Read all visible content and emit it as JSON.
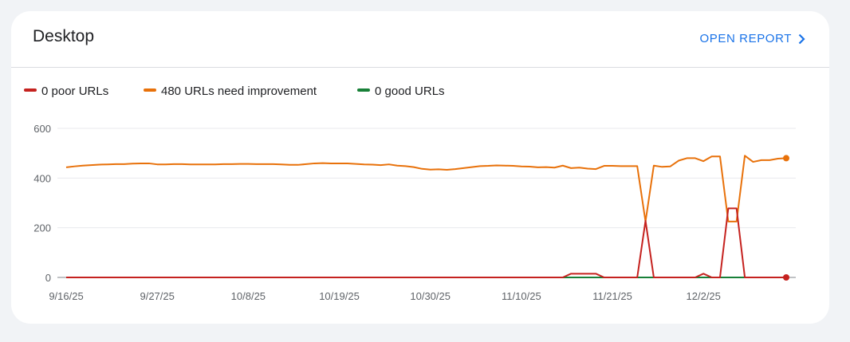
{
  "header": {
    "title": "Desktop",
    "link": "OPEN REPORT"
  },
  "chart_data": {
    "type": "line",
    "x": [
      "9/16/25",
      null,
      null,
      null,
      null,
      null,
      null,
      null,
      null,
      null,
      null,
      "9/27/25",
      null,
      null,
      null,
      null,
      null,
      null,
      null,
      null,
      null,
      null,
      "10/8/25",
      null,
      null,
      null,
      null,
      null,
      null,
      null,
      null,
      null,
      null,
      "10/19/25",
      null,
      null,
      null,
      null,
      null,
      null,
      null,
      null,
      null,
      null,
      "10/30/25",
      null,
      null,
      null,
      null,
      null,
      null,
      null,
      null,
      null,
      null,
      "11/10/25",
      null,
      null,
      null,
      null,
      null,
      null,
      null,
      null,
      null,
      null,
      "11/21/25",
      null,
      null,
      null,
      null,
      null,
      null,
      null,
      null,
      null,
      null,
      "12/2/25",
      null,
      null,
      null,
      null,
      null,
      null,
      null,
      null,
      null,
      null
    ],
    "series": [
      {
        "name": "0 good URLs",
        "color": "#188038",
        "values": [
          0,
          0,
          0,
          0,
          0,
          0,
          0,
          0,
          0,
          0,
          0,
          0,
          0,
          0,
          0,
          0,
          0,
          0,
          0,
          0,
          0,
          0,
          0,
          0,
          0,
          0,
          0,
          0,
          0,
          0,
          0,
          0,
          0,
          0,
          0,
          0,
          0,
          0,
          0,
          0,
          0,
          0,
          0,
          0,
          0,
          0,
          0,
          0,
          0,
          0,
          0,
          0,
          0,
          0,
          0,
          0,
          0,
          0,
          0,
          0,
          0,
          0,
          0,
          0,
          0,
          0,
          0,
          0,
          0,
          0,
          0,
          0,
          0,
          0,
          0,
          0,
          0,
          0,
          0,
          0,
          0,
          0,
          0,
          0,
          0,
          0,
          0,
          0
        ]
      },
      {
        "name": "480 URLs need improvement",
        "color": "#e8710a",
        "values": [
          443,
          447,
          450,
          452,
          454,
          455,
          456,
          456,
          458,
          459,
          459,
          455,
          455,
          456,
          456,
          455,
          455,
          455,
          455,
          456,
          456,
          457,
          457,
          456,
          456,
          456,
          455,
          453,
          453,
          456,
          459,
          460,
          459,
          459,
          459,
          457,
          455,
          454,
          452,
          455,
          450,
          448,
          444,
          437,
          434,
          435,
          433,
          436,
          440,
          444,
          448,
          449,
          451,
          450,
          449,
          447,
          446,
          443,
          444,
          442,
          450,
          440,
          442,
          438,
          436,
          449,
          449,
          448,
          448,
          448,
          225,
          450,
          445,
          447,
          470,
          480,
          480,
          468,
          487,
          487,
          225,
          225,
          490,
          465,
          472,
          472,
          478,
          480
        ]
      },
      {
        "name": "0 poor URLs",
        "color": "#c5221f",
        "values": [
          0,
          0,
          0,
          0,
          0,
          0,
          0,
          0,
          0,
          0,
          0,
          0,
          0,
          0,
          0,
          0,
          0,
          0,
          0,
          0,
          0,
          0,
          0,
          0,
          0,
          0,
          0,
          0,
          0,
          0,
          0,
          0,
          0,
          0,
          0,
          0,
          0,
          0,
          0,
          0,
          0,
          0,
          0,
          0,
          0,
          0,
          0,
          0,
          0,
          0,
          0,
          0,
          0,
          0,
          0,
          0,
          0,
          0,
          0,
          0,
          0,
          15,
          15,
          15,
          15,
          0,
          0,
          0,
          0,
          0,
          228,
          0,
          0,
          0,
          0,
          0,
          0,
          15,
          0,
          0,
          278,
          278,
          0,
          0,
          0,
          0,
          0,
          0
        ]
      }
    ],
    "ylim": [
      0,
      600
    ],
    "yticks": [
      0,
      200,
      400,
      600
    ],
    "grid": true
  }
}
